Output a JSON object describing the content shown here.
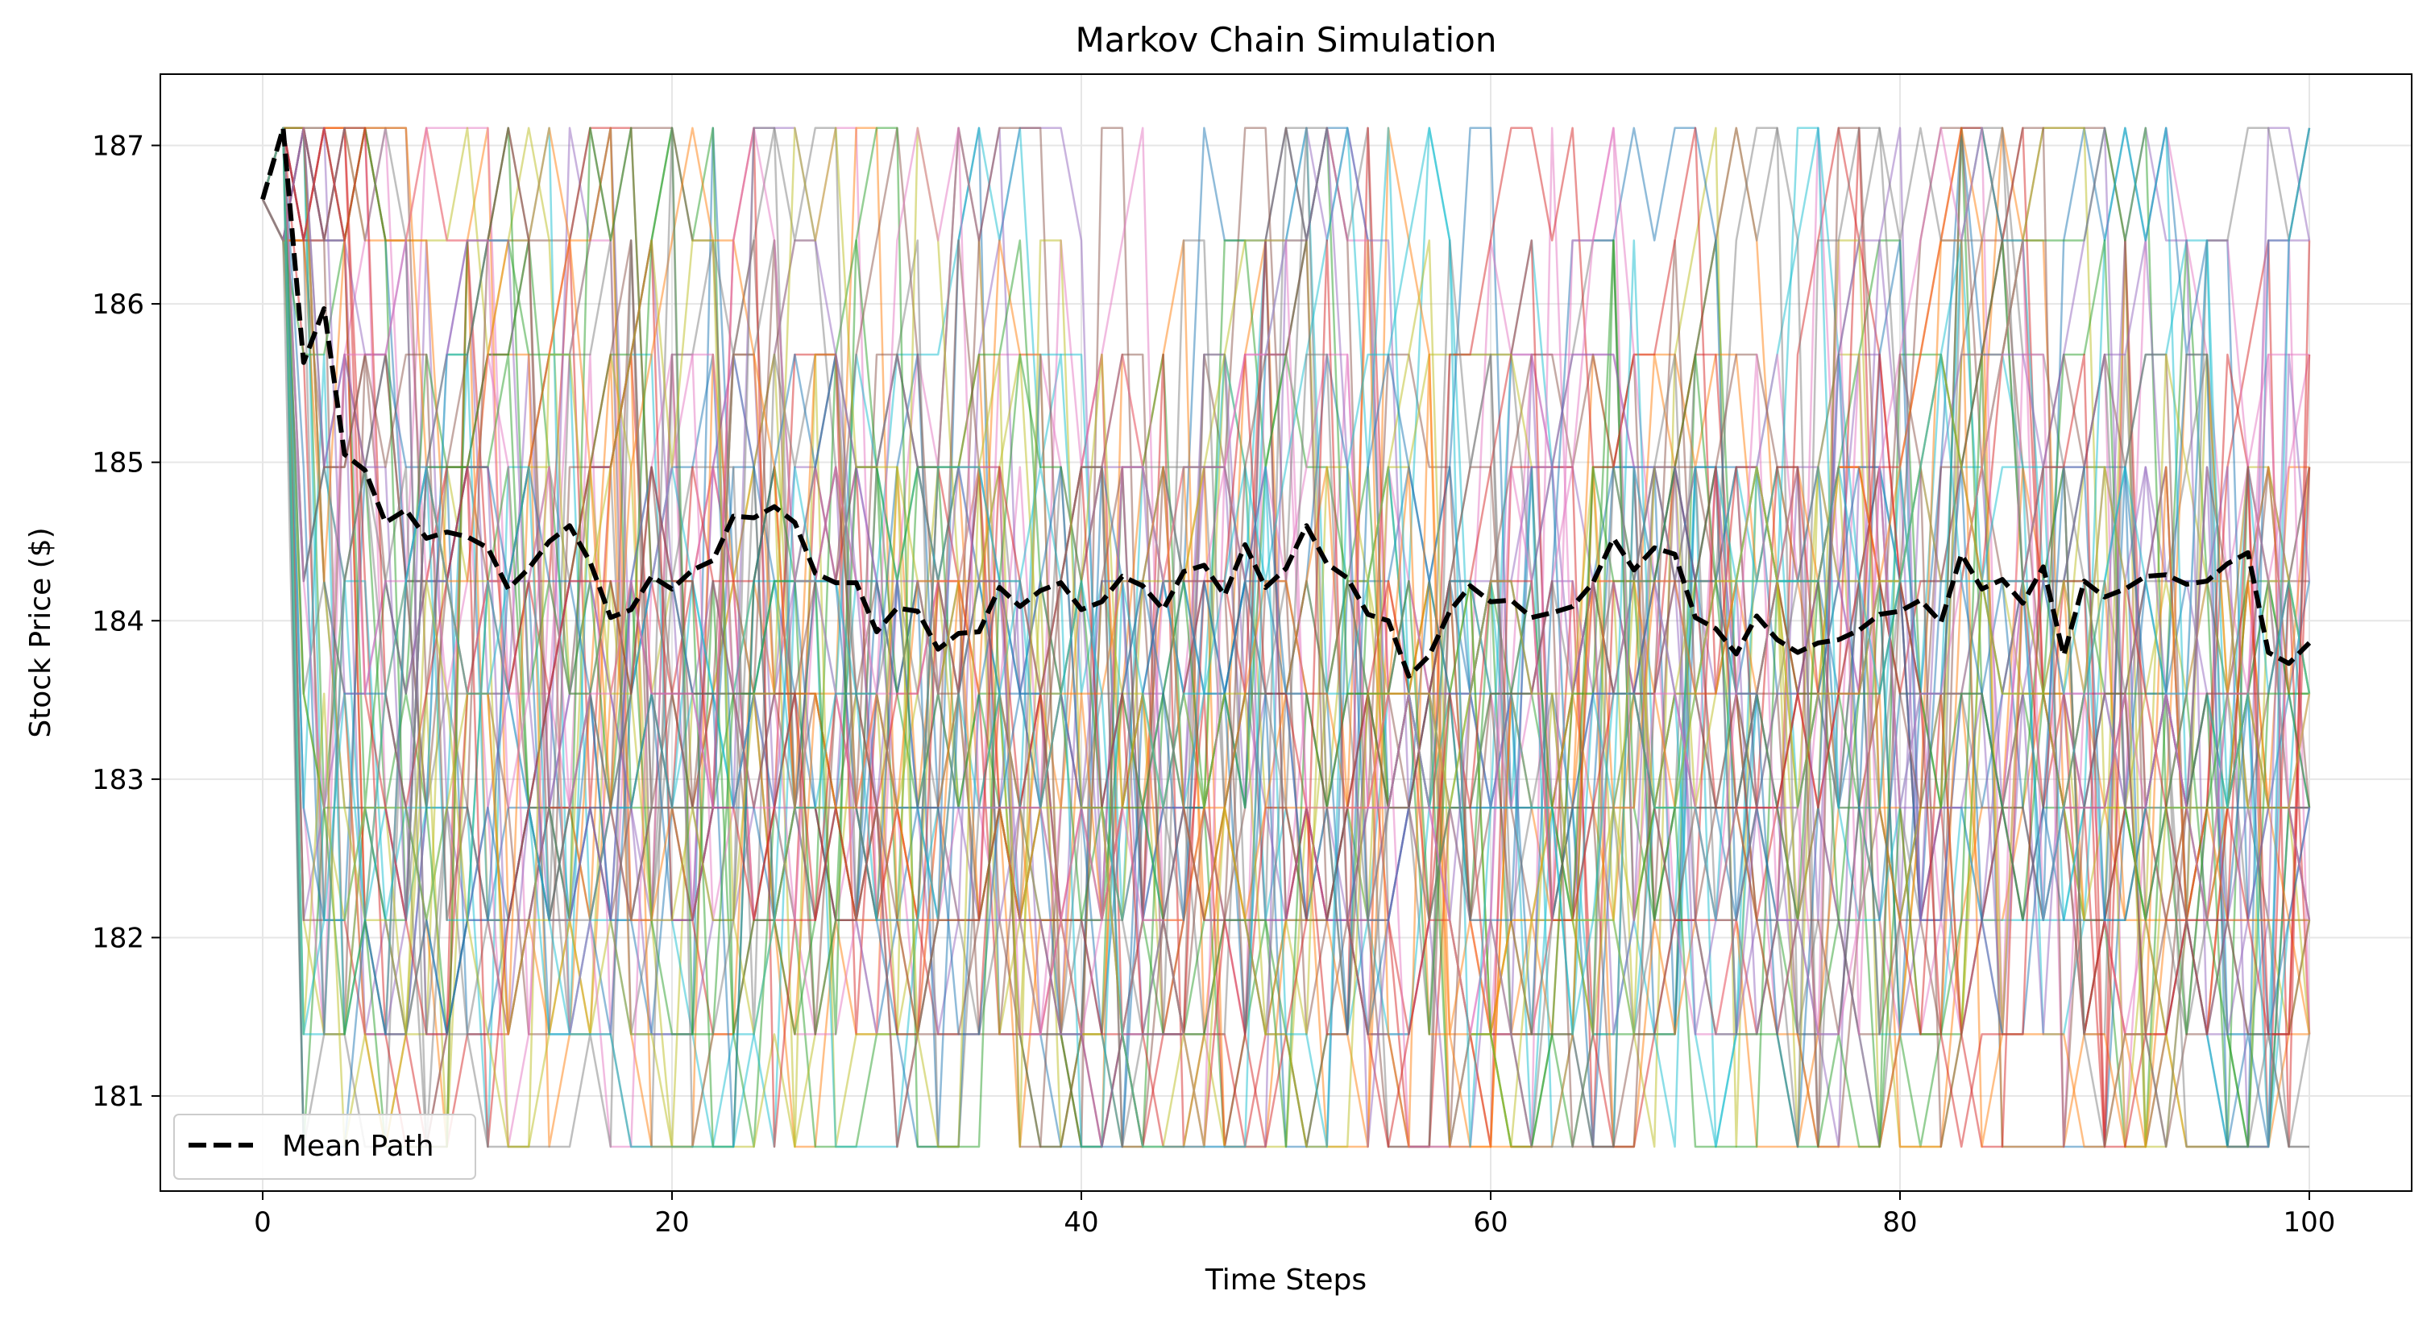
{
  "chart_data": {
    "type": "line",
    "title": "Markov Chain Simulation",
    "xlabel": "Time Steps",
    "ylabel": "Stock Price ($)",
    "xlim": [
      -5,
      105
    ],
    "ylim": [
      180.4,
      187.45
    ],
    "xticks": [
      0,
      20,
      40,
      60,
      80,
      100
    ],
    "yticks": [
      181,
      182,
      183,
      184,
      185,
      186,
      187
    ],
    "grid": true,
    "legend": {
      "location": "lower-left",
      "entries": [
        "Mean Path"
      ]
    },
    "price_levels": [
      180.68,
      181.39,
      182.11,
      182.82,
      183.54,
      184.25,
      184.97,
      185.68,
      186.4,
      187.11
    ],
    "start_price": 186.66,
    "steps": 100,
    "n_sim_paths": 50,
    "sim_path_colors": [
      "#1f77b4",
      "#ff7f0e",
      "#2ca02c",
      "#d62728",
      "#9467bd",
      "#8c564b",
      "#e377c2",
      "#7f7f7f",
      "#bcbd22",
      "#17becf"
    ],
    "sim_path_opacity": 0.5,
    "series": [
      {
        "name": "Mean Path",
        "color": "#000000",
        "style": "dashed",
        "x": [
          0,
          1,
          2,
          3,
          4,
          5,
          6,
          7,
          8,
          9,
          10,
          11,
          12,
          13,
          14,
          15,
          16,
          17,
          18,
          19,
          20,
          21,
          22,
          23,
          24,
          25,
          26,
          27,
          28,
          29,
          30,
          31,
          32,
          33,
          34,
          35,
          36,
          37,
          38,
          39,
          40,
          41,
          42,
          43,
          44,
          45,
          46,
          47,
          48,
          49,
          50,
          51,
          52,
          53,
          54,
          55,
          56,
          57,
          58,
          59,
          60,
          61,
          62,
          63,
          64,
          65,
          66,
          67,
          68,
          69,
          70,
          71,
          72,
          73,
          74,
          75,
          76,
          77,
          78,
          79,
          80,
          81,
          82,
          83,
          84,
          85,
          86,
          87,
          88,
          89,
          90,
          91,
          92,
          93,
          94,
          95,
          96,
          97,
          98,
          99,
          100
        ],
        "values": [
          186.66,
          187.11,
          185.63,
          185.97,
          185.05,
          184.95,
          184.62,
          184.7,
          184.52,
          184.56,
          184.53,
          184.46,
          184.2,
          184.33,
          184.5,
          184.6,
          184.37,
          184.02,
          184.07,
          184.28,
          184.2,
          184.32,
          184.38,
          184.66,
          184.65,
          184.72,
          184.62,
          184.3,
          184.24,
          184.24,
          183.93,
          184.08,
          184.06,
          183.82,
          183.92,
          183.93,
          184.21,
          184.09,
          184.19,
          184.24,
          184.07,
          184.12,
          184.28,
          184.22,
          184.07,
          184.31,
          184.35,
          184.16,
          184.48,
          184.21,
          184.33,
          184.6,
          184.36,
          184.27,
          184.04,
          184.0,
          183.65,
          183.78,
          184.06,
          184.22,
          184.12,
          184.13,
          184.02,
          184.05,
          184.09,
          184.24,
          184.52,
          184.32,
          184.46,
          184.42,
          184.02,
          183.95,
          183.79,
          184.03,
          183.88,
          183.8,
          183.86,
          183.88,
          183.94,
          184.04,
          184.06,
          184.13,
          183.99,
          184.42,
          184.2,
          184.26,
          184.11,
          184.34,
          183.78,
          184.25,
          184.15,
          184.2,
          184.28,
          184.29,
          184.23,
          184.25,
          184.36,
          184.43,
          183.8,
          183.73,
          183.86
        ]
      }
    ]
  }
}
